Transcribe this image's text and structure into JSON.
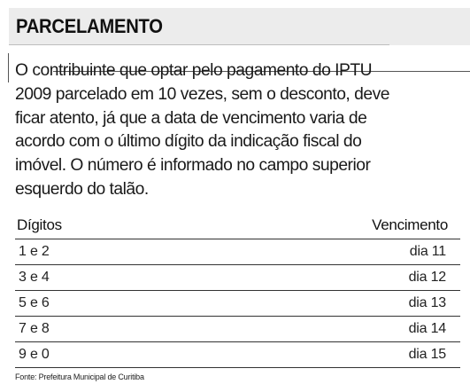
{
  "title": "PARCELAMENTO",
  "body_lines": [
    "O contribuinte que optar pelo pagamento do IPTU",
    "2009 parcelado em 10 vezes, sem o desconto, deve",
    "ficar atento, já que a data de vencimento varia de",
    "acordo com o último dígito da indicação fiscal do",
    "imóvel. O número é informado no campo superior",
    "esquerdo do talão."
  ],
  "table": {
    "headers": {
      "digits": "Dígitos",
      "due": "Vencimento"
    },
    "rows": [
      {
        "digits": "1 e 2",
        "due": "dia 11"
      },
      {
        "digits": "3 e 4",
        "due": "dia 12"
      },
      {
        "digits": "5 e 6",
        "due": "dia 13"
      },
      {
        "digits": "7 e 8",
        "due": "dia 14"
      },
      {
        "digits": "9 e 0",
        "due": "dia 15"
      }
    ]
  },
  "source": "Fonte: Prefeitura Municipal de Curitiba"
}
